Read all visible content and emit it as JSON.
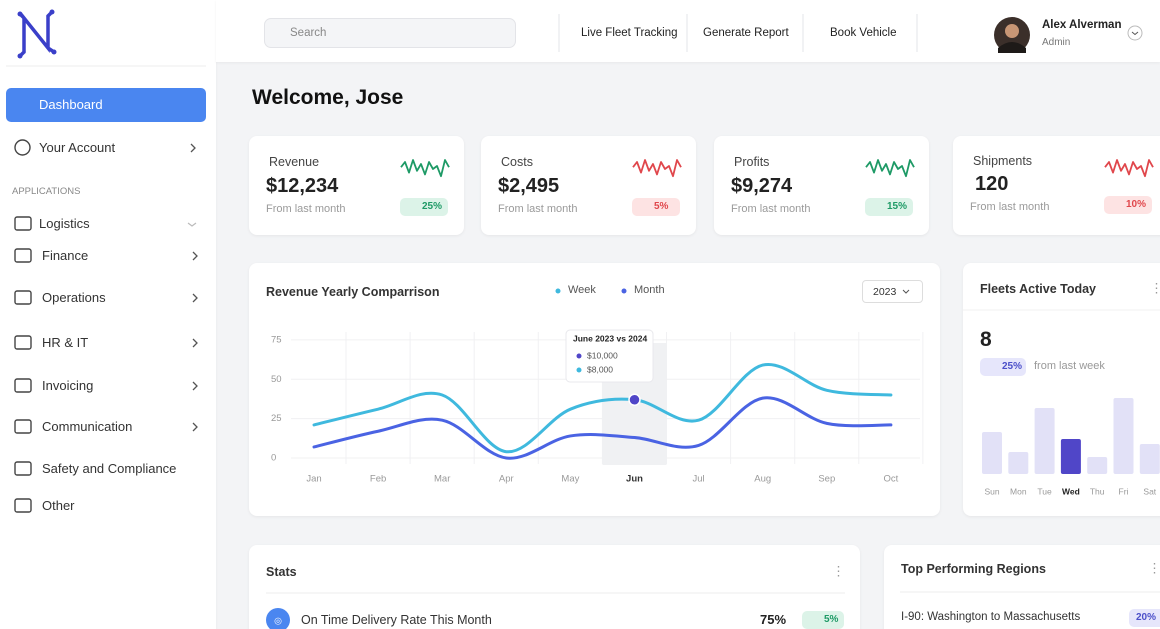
{
  "sidebar": {
    "items": [
      "Dashboard",
      "Your Account"
    ],
    "active": 0,
    "section": "APPLICATIONS",
    "apps": [
      "Logistics",
      "Finance",
      "Operations",
      "HR & IT",
      "Invoicing",
      "Communication",
      "Safety and Compliance",
      "Other"
    ]
  },
  "topbar": {
    "search": "Search",
    "links": [
      "Live Fleet Tracking",
      "Generate Report",
      "Book Vehicle"
    ],
    "user": {
      "name": "Alex Alverman",
      "role": "Admin"
    }
  },
  "welcome": "Welcome, Jose",
  "kpis": [
    {
      "label": "Revenue",
      "value": "$12,234",
      "note": "From last month",
      "change": "25%",
      "trend": "up"
    },
    {
      "label": "Costs",
      "value": "$2,495",
      "note": "From last month",
      "change": "5%",
      "trend": "down"
    },
    {
      "label": "Profits",
      "value": "$9,274",
      "note": "From last month",
      "change": "15%",
      "trend": "up"
    },
    {
      "label": "Shipments",
      "value": "120",
      "note": "From last month",
      "change": "10%",
      "trend": "down"
    }
  ],
  "revenue_chart": {
    "type": "line",
    "title": "Revenue Yearly Comparrison",
    "filter": "2023",
    "categories": [
      "Jan",
      "Feb",
      "Mar",
      "Apr",
      "May",
      "Jun",
      "Jul",
      "Aug",
      "Sep",
      "Oct"
    ],
    "series": [
      {
        "name": "Week",
        "color": "#3fb9de",
        "values": [
          21,
          31,
          40,
          4,
          31,
          37,
          24,
          59,
          43,
          40
        ]
      },
      {
        "name": "Month",
        "color": "#4a63e3",
        "values": [
          7,
          17,
          24,
          0,
          14,
          13,
          8,
          38,
          22,
          21
        ]
      }
    ],
    "ylim": [
      0,
      80
    ],
    "yticks": [
      0,
      25,
      50,
      75
    ],
    "grid": true,
    "highlight": 5,
    "tooltip": {
      "title": "June 2023 vs 2024",
      "items": [
        "$10,000",
        "$8,000"
      ]
    }
  },
  "fleets": {
    "title": "Fleets Active Today",
    "value": "8",
    "change": "25%",
    "note": "from last week",
    "days": [
      "Sun",
      "Mon",
      "Tue",
      "Wed",
      "Thu",
      "Fri",
      "Sat"
    ],
    "values": [
      42,
      22,
      66,
      35,
      17,
      76,
      30
    ],
    "highlight": 3
  },
  "stats": {
    "title": "Stats",
    "rows": [
      {
        "label": "On Time Delivery Rate This Month",
        "value": "75%",
        "change": "5%"
      }
    ]
  },
  "regions": {
    "title": "Top Performing Regions",
    "rows": [
      {
        "label": "I-90: Washington to Massachusetts",
        "change": "20%"
      }
    ]
  }
}
